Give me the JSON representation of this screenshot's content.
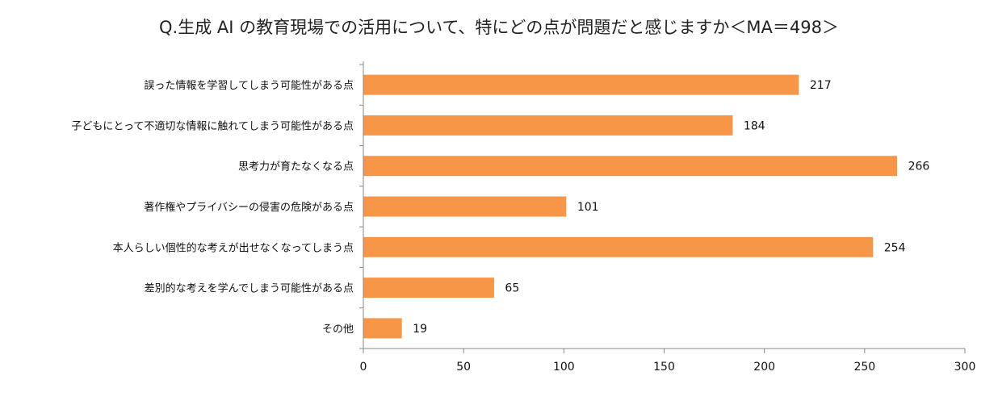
{
  "chart_data": {
    "type": "bar",
    "orientation": "horizontal",
    "title": "Q.生成 AI の教育現場での活用について、特にどの点が問題だと感じますか＜MA＝498＞",
    "categories": [
      "誤った情報を学習してしまう可能性がある点",
      "子どもにとって不適切な情報に触れてしまう可能性がある点",
      "思考力が育たなくなる点",
      "著作権やプライバシーの侵害の危険がある点",
      "本人らしい個性的な考えが出せなくなってしまう点",
      "差別的な考えを学んでしまう可能性がある点",
      "その他"
    ],
    "values": [
      217,
      184,
      266,
      101,
      254,
      65,
      19
    ],
    "xlim": [
      0,
      300
    ],
    "xticks": [
      0,
      50,
      100,
      150,
      200,
      250,
      300
    ],
    "xlabel": "",
    "ylabel": "",
    "bar_color": "#F79646",
    "grid": false,
    "legend": "none"
  }
}
